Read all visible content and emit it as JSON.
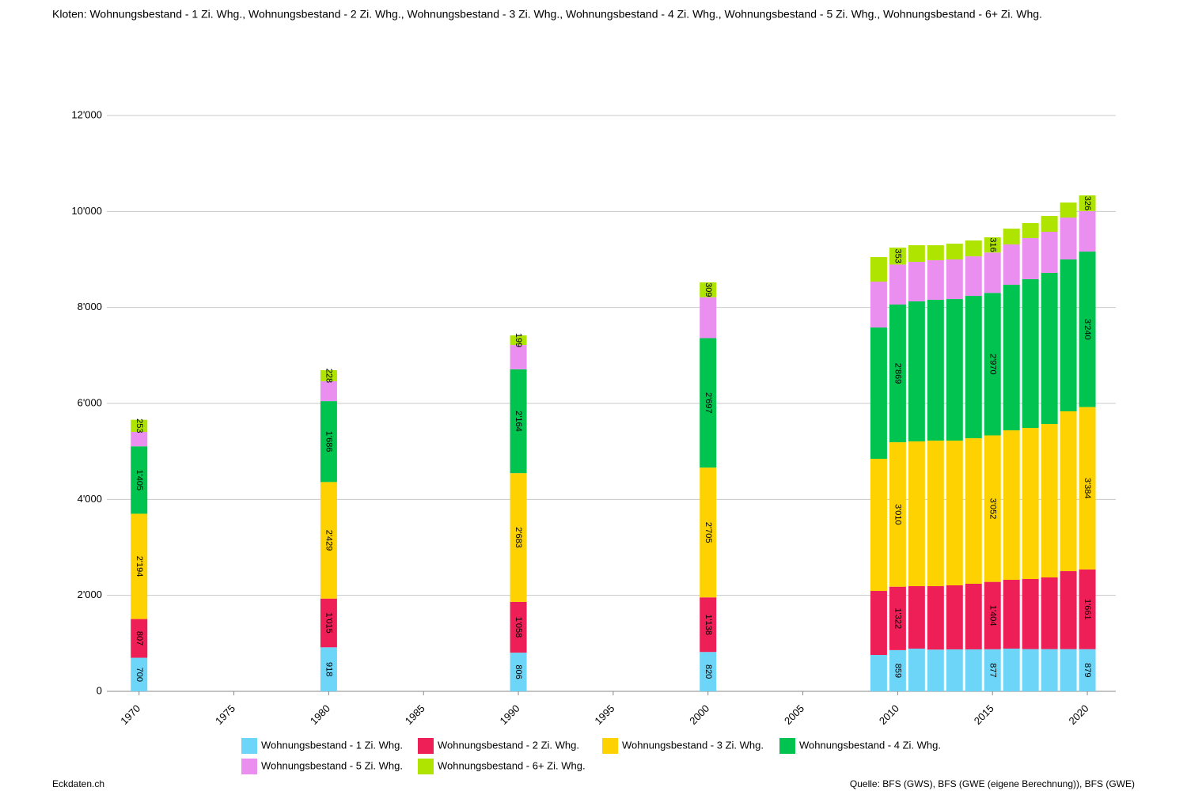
{
  "chart_data": {
    "type": "stacked-bar",
    "title": "Kloten: Wohnungsbestand - 1 Zi. Whg., Wohnungsbestand - 2 Zi. Whg., Wohnungsbestand - 3 Zi. Whg., Wohnungsbestand - 4 Zi. Whg., Wohnungsbestand - 5 Zi. Whg., Wohnungsbestand - 6+ Zi. Whg.",
    "x": [
      1970,
      1980,
      1990,
      2000,
      2009,
      2010,
      2011,
      2012,
      2013,
      2014,
      2015,
      2016,
      2017,
      2018,
      2019,
      2020
    ],
    "xlim": [
      1968.3,
      2021.5
    ],
    "xticks": [
      1970,
      1975,
      1980,
      1985,
      1990,
      1995,
      2000,
      2005,
      2010,
      2015,
      2020
    ],
    "ylim": [
      0,
      12000
    ],
    "yticks": [
      0,
      {
        "value": 2000,
        "label": "2'000"
      },
      {
        "value": 4000,
        "label": "4'000"
      },
      {
        "value": 6000,
        "label": "6'000"
      },
      {
        "value": 8000,
        "label": "8'000"
      },
      {
        "value": 10000,
        "label": "10'000"
      },
      {
        "value": 12000,
        "label": "12'000"
      }
    ],
    "grid": true,
    "series": [
      {
        "name": "Wohnungsbestand - 1 Zi. Whg.",
        "color": "#6dd5f8",
        "values": [
          700,
          918,
          806,
          820,
          758,
          859,
          890,
          870,
          875,
          875,
          877,
          890,
          880,
          880,
          880,
          879
        ],
        "value_labels": [
          "700",
          "918",
          "806",
          "820",
          null,
          "859",
          null,
          null,
          null,
          null,
          "877",
          null,
          null,
          null,
          null,
          "879"
        ]
      },
      {
        "name": "Wohnungsbestand - 2 Zi. Whg.",
        "color": "#ee1f56",
        "values": [
          807,
          1015,
          1058,
          1138,
          1335,
          1322,
          1302,
          1322,
          1334,
          1367,
          1404,
          1434,
          1461,
          1494,
          1625,
          1661
        ],
        "value_labels": [
          "807",
          "1'015",
          "1'058",
          "1'138",
          null,
          "1'322",
          null,
          null,
          null,
          null,
          "1'404",
          null,
          null,
          null,
          null,
          "1'661"
        ]
      },
      {
        "name": "Wohnungsbestand - 3 Zi. Whg.",
        "color": "#fdd200",
        "values": [
          2194,
          2429,
          2683,
          2705,
          2753,
          3010,
          3016,
          3033,
          3016,
          3032,
          3052,
          3115,
          3148,
          3197,
          3330,
          3384
        ],
        "value_labels": [
          "2'194",
          "2'429",
          "2'683",
          "2'705",
          null,
          "3'010",
          null,
          null,
          null,
          null,
          "3'052",
          null,
          null,
          null,
          null,
          "3'384"
        ]
      },
      {
        "name": "Wohnungsbestand - 4 Zi. Whg.",
        "color": "#00c44f",
        "values": [
          1405,
          1686,
          2164,
          2697,
          2736,
          2869,
          2918,
          2934,
          2950,
          2967,
          2970,
          3033,
          3099,
          3149,
          3165,
          3240
        ],
        "value_labels": [
          "1'405",
          "1'686",
          "2'164",
          "2'697",
          null,
          "2'869",
          null,
          null,
          null,
          null,
          "2'970",
          null,
          null,
          null,
          null,
          "3'240"
        ]
      },
      {
        "name": "Wohnungsbestand - 5 Zi. Whg.",
        "color": "#ea8ff0",
        "values": [
          300,
          416,
          507,
          853,
          956,
          834,
          824,
          824,
          825,
          824,
          842,
          841,
          857,
          857,
          873,
          845
        ]
      },
      {
        "name": "Wohnungsbestand - 6+ Zi. Whg.",
        "color": "#aee400",
        "values": [
          253,
          228,
          199,
          309,
          511,
          353,
          346,
          313,
          329,
          330,
          316,
          329,
          313,
          329,
          313,
          326
        ],
        "value_labels": [
          "253",
          "228",
          "199",
          "309",
          null,
          "353",
          null,
          null,
          null,
          null,
          "316",
          null,
          null,
          null,
          null,
          "326"
        ]
      }
    ],
    "footer_left": "Eckdaten.ch",
    "footer_right": "Quelle: BFS (GWS), BFS (GWE (eigene Berechnung)), BFS (GWE)"
  }
}
